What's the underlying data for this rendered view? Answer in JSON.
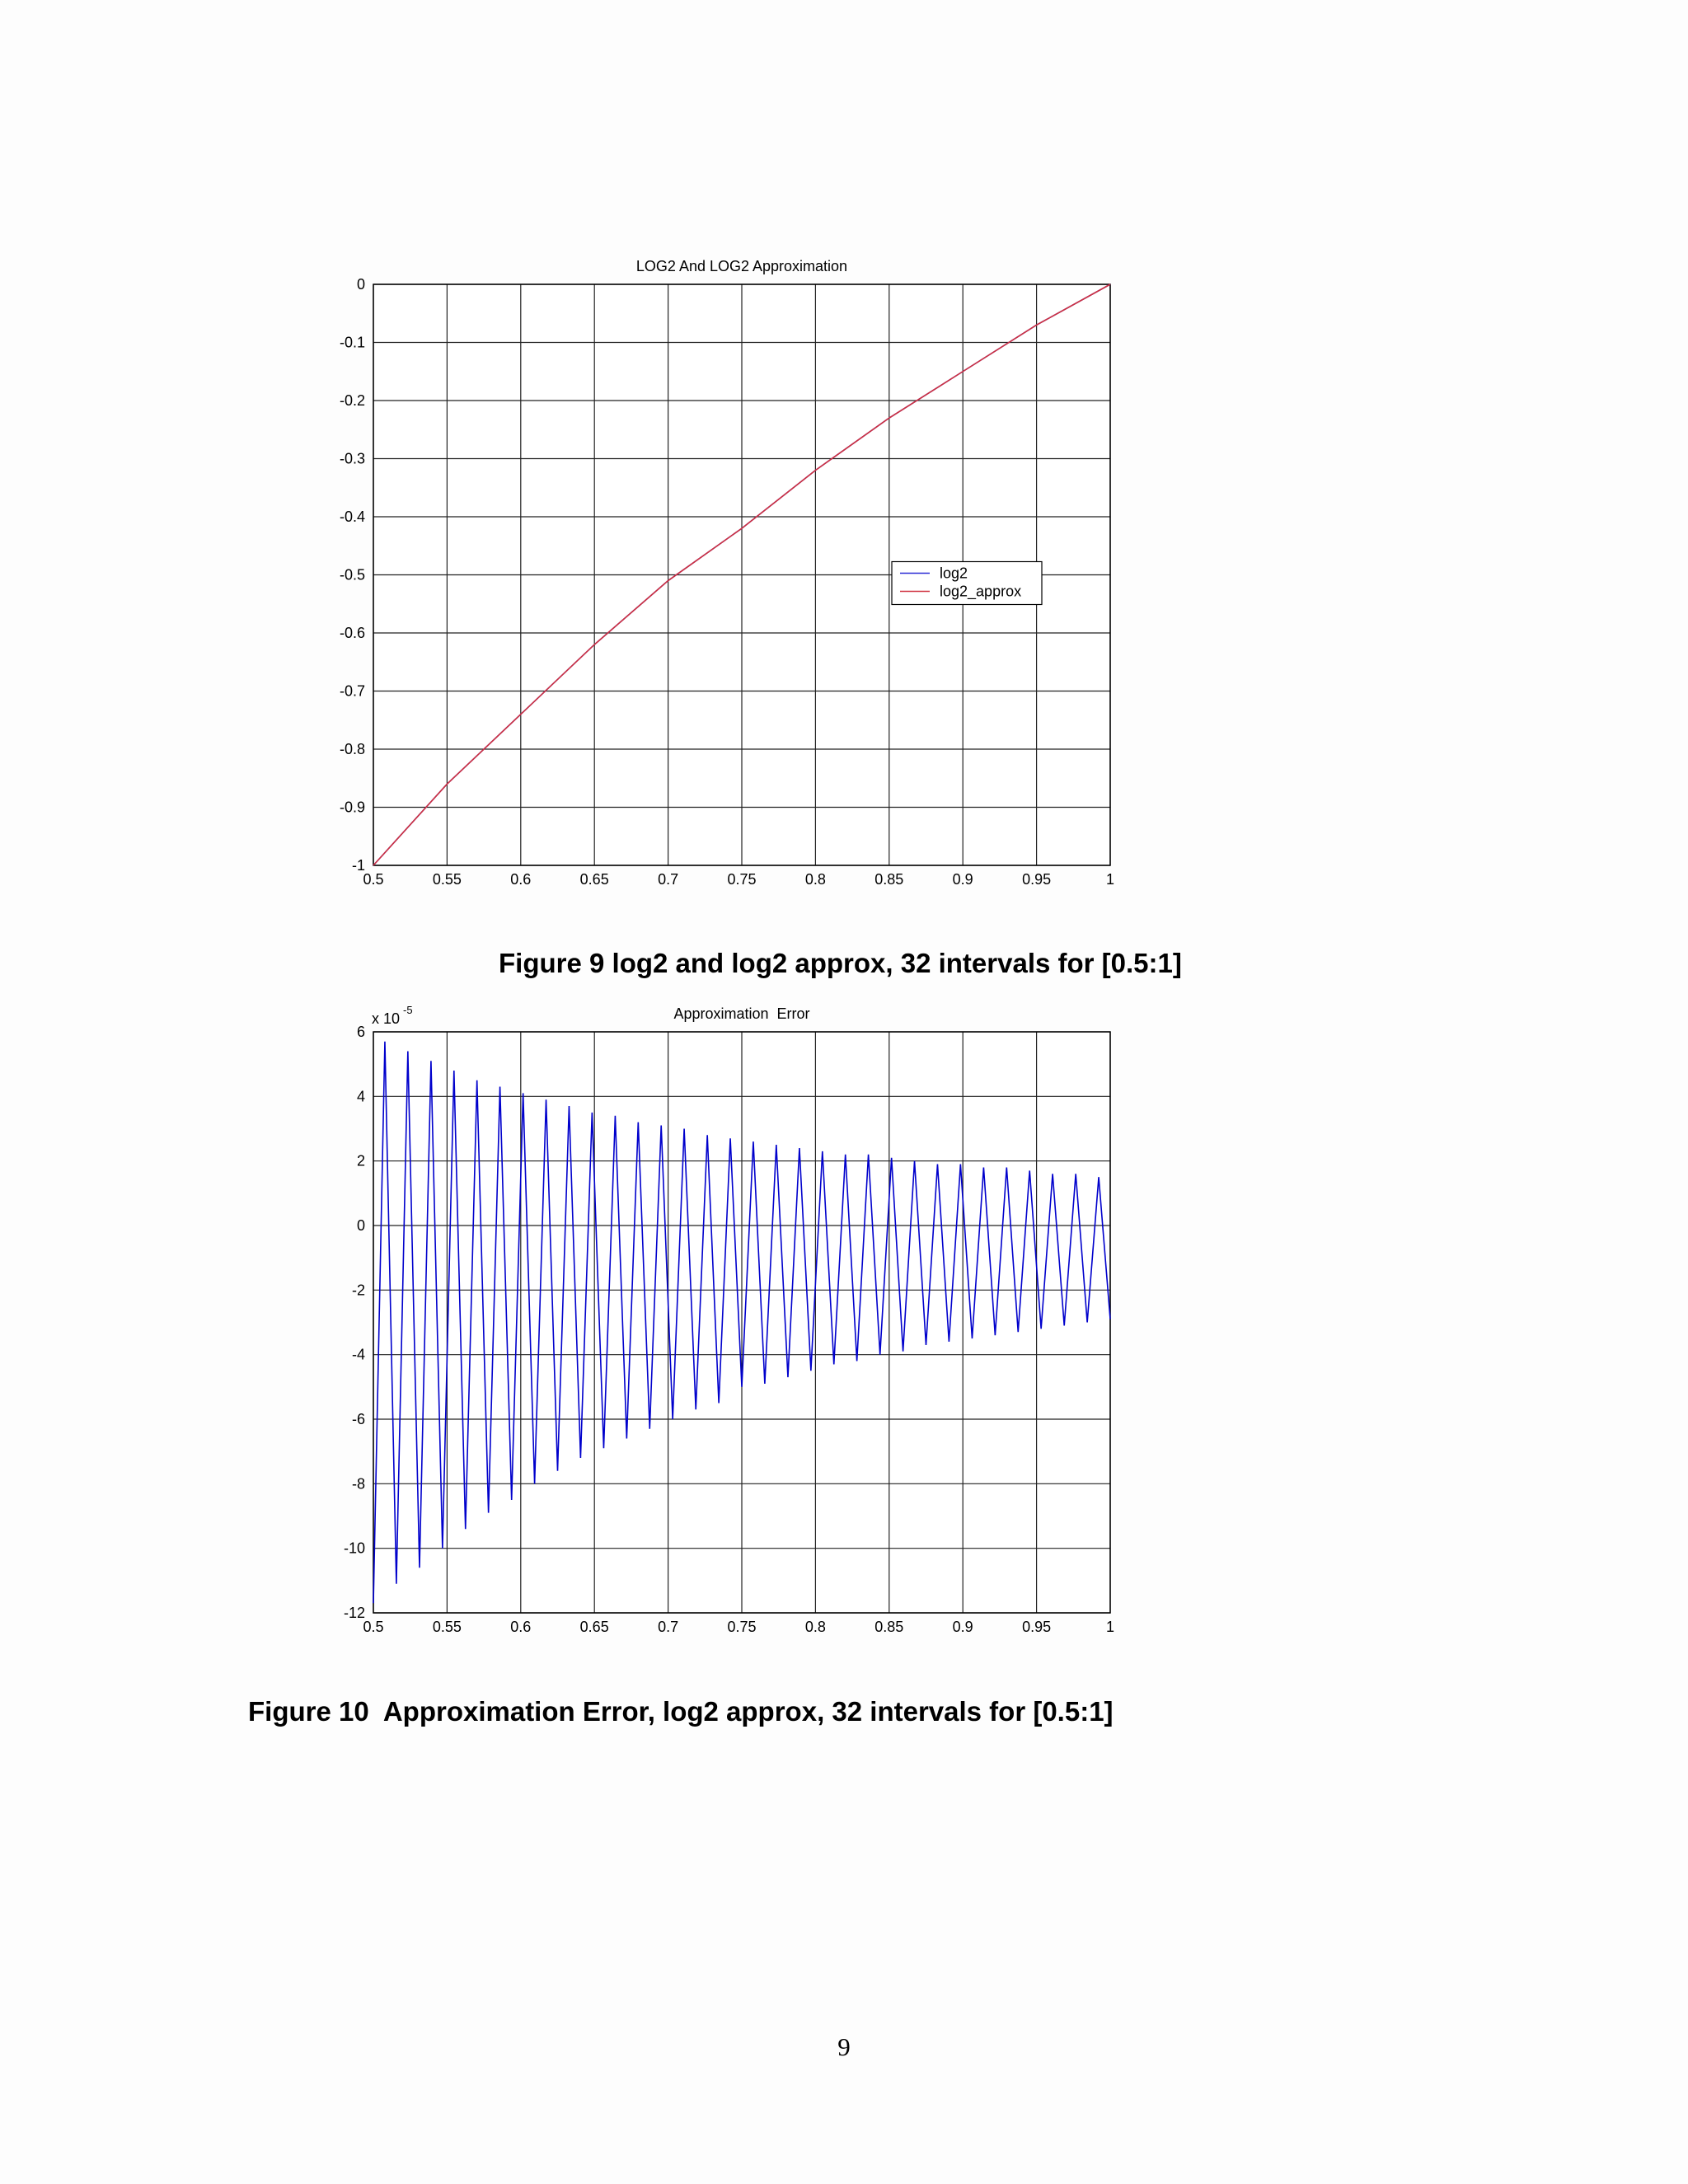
{
  "chart_data": [
    {
      "type": "line",
      "title": "LOG2 And LOG2 Approximation",
      "x": [
        0.5,
        0.55,
        0.6,
        0.65,
        0.7,
        0.75,
        0.8,
        0.85,
        0.9,
        0.95,
        1
      ],
      "series": [
        {
          "name": "log2",
          "color": "#2b2bd6",
          "values": [
            -1,
            -0.86,
            -0.74,
            -0.62,
            -0.51,
            -0.42,
            -0.32,
            -0.23,
            -0.15,
            -0.07,
            0
          ]
        },
        {
          "name": "log2_approx",
          "color": "#d0313f",
          "values": [
            -1,
            -0.86,
            -0.74,
            -0.62,
            -0.51,
            -0.42,
            -0.32,
            -0.23,
            -0.15,
            -0.07,
            0
          ]
        }
      ],
      "xlim": [
        0.5,
        1
      ],
      "xticks": [
        0.5,
        0.55,
        0.6,
        0.65,
        0.7,
        0.75,
        0.8,
        0.85,
        0.9,
        0.95,
        1
      ],
      "ylim": [
        -1,
        0
      ],
      "yticks": [
        -1,
        -0.9,
        -0.8,
        -0.7,
        -0.6,
        -0.5,
        -0.4,
        -0.3,
        -0.2,
        -0.1,
        0
      ],
      "grid": true,
      "legend": "center right"
    },
    {
      "type": "line",
      "title": "Approximation  Error",
      "y_multiplier": {
        "base": "x 10",
        "exponent": "-5"
      },
      "x": [
        0.5,
        0.5078,
        0.5156,
        0.5234,
        0.5313,
        0.5391,
        0.5469,
        0.5547,
        0.5625,
        0.5703,
        0.5781,
        0.5859,
        0.5938,
        0.6016,
        0.6094,
        0.6172,
        0.625,
        0.6328,
        0.6406,
        0.6484,
        0.6563,
        0.6641,
        0.6719,
        0.6797,
        0.6875,
        0.6953,
        0.7031,
        0.7109,
        0.7188,
        0.7266,
        0.7344,
        0.7422,
        0.75,
        0.7578,
        0.7656,
        0.7734,
        0.7813,
        0.7891,
        0.7969,
        0.8047,
        0.8125,
        0.8203,
        0.8281,
        0.8359,
        0.8438,
        0.8516,
        0.8594,
        0.8672,
        0.875,
        0.8828,
        0.8906,
        0.8984,
        0.9063,
        0.9141,
        0.9219,
        0.9297,
        0.9375,
        0.9453,
        0.9531,
        0.9609,
        0.9688,
        0.9766,
        0.9844,
        0.9922,
        1
      ],
      "values": [
        -11.7,
        5.7,
        -11.1,
        5.4,
        -10.6,
        5.1,
        -10.0,
        4.8,
        -9.4,
        4.5,
        -8.9,
        4.3,
        -8.5,
        4.1,
        -8.0,
        3.9,
        -7.6,
        3.7,
        -7.2,
        3.5,
        -6.9,
        3.4,
        -6.6,
        3.2,
        -6.3,
        3.1,
        -6.0,
        3.0,
        -5.7,
        2.8,
        -5.5,
        2.7,
        -5.0,
        2.6,
        -4.9,
        2.5,
        -4.7,
        2.4,
        -4.5,
        2.3,
        -4.3,
        2.2,
        -4.2,
        2.2,
        -4.0,
        2.1,
        -3.9,
        2.0,
        -3.7,
        1.9,
        -3.6,
        1.9,
        -3.5,
        1.8,
        -3.4,
        1.8,
        -3.3,
        1.7,
        -3.2,
        1.6,
        -3.1,
        1.6,
        -3.0,
        1.5,
        -2.9
      ],
      "color": "#0000cc",
      "xlim": [
        0.5,
        1
      ],
      "xticks": [
        0.5,
        0.55,
        0.6,
        0.65,
        0.7,
        0.75,
        0.8,
        0.85,
        0.9,
        0.95,
        1
      ],
      "ylim": [
        -12,
        6
      ],
      "yticks": [
        -12,
        -10,
        -8,
        -6,
        -4,
        -2,
        0,
        2,
        4,
        6
      ],
      "grid": true
    }
  ],
  "captions": [
    "Figure 9 log2 and log2 approx, 32 intervals for [0.5:1]",
    "Figure 10  Approximation Error, log2 approx, 32 intervals for [0.5:1]"
  ],
  "page_number": "9"
}
